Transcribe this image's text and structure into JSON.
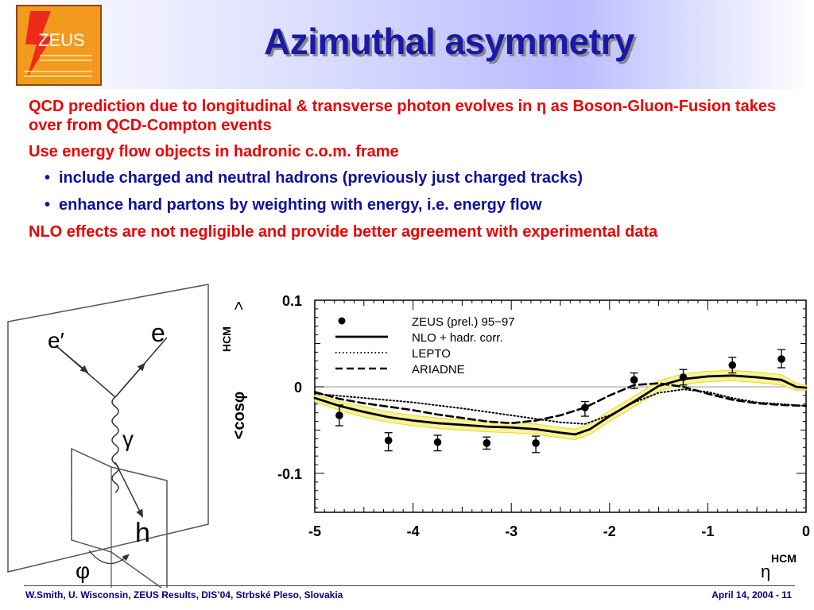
{
  "slide": {
    "title": "Azimuthal asymmetry",
    "logo_text": "ZEUS",
    "bullets": [
      {
        "text": "QCD prediction due to longitudinal & transverse photon evolves in η as Boson-Gluon-Fusion takes over from QCD-Compton events"
      },
      {
        "text": "Use energy flow objects in hadronic c.o.m. frame"
      }
    ],
    "sub_bullets": [
      {
        "text": "include charged and neutral hadrons (previously just charged tracks)"
      },
      {
        "text": "enhance hard partons by weighting with energy, i.e. energy flow"
      }
    ],
    "final_bullet": "NLO effects are not negligible and provide better agreement with experimental data",
    "footer_left": "W.Smith, U. Wisconsin, ZEUS Results, DIS’04, Strbské Pleso, Slovakia",
    "footer_right": "April 14, 2004  -  11"
  },
  "diagram": {
    "labels": {
      "e_prime": "e′",
      "e": "e",
      "gamma": "γ",
      "h": "h",
      "phi": "φ"
    }
  },
  "colors": {
    "title": "#1a1aa6",
    "red_text": "#ee0000",
    "blue_text": "#0f0fa0",
    "band_fill": "#f8f39a",
    "band_edge": "#e8d820",
    "logo_bg": "#f39a1e"
  },
  "chart_data": {
    "type": "line",
    "xlim": [
      -5,
      0
    ],
    "ylim": [
      -0.145,
      0.1
    ],
    "xticks": [
      {
        "value": -5,
        "label": "-5"
      },
      {
        "value": -4,
        "label": "-4"
      },
      {
        "value": -3,
        "label": "-3"
      },
      {
        "value": -2,
        "label": "-2"
      },
      {
        "value": -1,
        "label": "-1"
      },
      {
        "value": 0,
        "label": "0"
      }
    ],
    "yticks": [
      {
        "value": 0.1,
        "label": "0.1"
      },
      {
        "value": 0,
        "label": "0"
      },
      {
        "value": -0.1,
        "label": "-0.1"
      }
    ],
    "xlabel_main": "η",
    "xlabel_sup": "HCM",
    "ylabel_main": "<cosφ",
    "ylabel_sup": "HCM",
    "ylabel_end": ">",
    "zero_line": true,
    "legend_position": "top-left",
    "legend": [
      {
        "label": "ZEUS (prel.) 95−97",
        "style": "points"
      },
      {
        "label": "NLO + hadr. corr.",
        "style": "solid"
      },
      {
        "label": "LEPTO",
        "style": "dotted"
      },
      {
        "label": "ARIADNE",
        "style": "dashed"
      }
    ],
    "points": {
      "x": [
        -4.75,
        -4.25,
        -3.75,
        -3.25,
        -2.75,
        -2.25,
        -1.75,
        -1.25,
        -0.75,
        -0.25
      ],
      "y": [
        -0.033,
        -0.062,
        -0.064,
        -0.065,
        -0.065,
        -0.024,
        0.008,
        0.011,
        0.025,
        0.032
      ],
      "err_up": [
        0.012,
        0.009,
        0.008,
        0.007,
        0.008,
        0.007,
        0.008,
        0.009,
        0.009,
        0.011
      ],
      "err_down": [
        0.012,
        0.012,
        0.01,
        0.007,
        0.011,
        0.01,
        0.01,
        0.009,
        0.009,
        0.01
      ]
    },
    "series": [
      {
        "name": "NLO + hadr. corr.",
        "style": "solid",
        "x": [
          -5,
          -4.75,
          -4.5,
          -4.25,
          -4,
          -3.75,
          -3.5,
          -3.25,
          -3,
          -2.75,
          -2.5,
          -2.35,
          -2.2,
          -2,
          -1.75,
          -1.5,
          -1.25,
          -1,
          -0.75,
          -0.5,
          -0.25,
          -0.1,
          0
        ],
        "y": [
          -0.013,
          -0.022,
          -0.029,
          -0.035,
          -0.039,
          -0.042,
          -0.044,
          -0.046,
          -0.047,
          -0.049,
          -0.053,
          -0.055,
          -0.049,
          -0.034,
          -0.017,
          0.001,
          0.009,
          0.012,
          0.013,
          0.011,
          0.008,
          0.0,
          -0.001
        ],
        "band_half_width": [
          0.004,
          0.005,
          0.006,
          0.006,
          0.006,
          0.006,
          0.006,
          0.006,
          0.006,
          0.006,
          0.006,
          0.006,
          0.006,
          0.006,
          0.006,
          0.006,
          0.006,
          0.006,
          0.006,
          0.006,
          0.006,
          0.004,
          0.003
        ]
      },
      {
        "name": "LEPTO",
        "style": "dotted",
        "x": [
          -5,
          -4.5,
          -4,
          -3.5,
          -3,
          -2.5,
          -2.25,
          -2,
          -1.75,
          -1.5,
          -1.25,
          -1,
          -0.75,
          -0.5,
          -0.25,
          0
        ],
        "y": [
          -0.008,
          -0.013,
          -0.018,
          -0.025,
          -0.033,
          -0.041,
          -0.043,
          -0.033,
          -0.018,
          -0.007,
          -0.003,
          -0.006,
          -0.013,
          -0.018,
          -0.02,
          -0.022
        ]
      },
      {
        "name": "ARIADNE",
        "style": "dashed",
        "x": [
          -5,
          -4.75,
          -4.5,
          -4.25,
          -4,
          -3.75,
          -3.5,
          -3.25,
          -3,
          -2.75,
          -2.5,
          -2.25,
          -2,
          -1.75,
          -1.5,
          -1.25,
          -1,
          -0.75,
          -0.5,
          -0.25,
          0
        ],
        "y": [
          -0.006,
          -0.014,
          -0.019,
          -0.023,
          -0.027,
          -0.032,
          -0.036,
          -0.04,
          -0.042,
          -0.039,
          -0.033,
          -0.024,
          -0.01,
          0.002,
          0.004,
          0.0,
          -0.008,
          -0.015,
          -0.019,
          -0.021,
          -0.022
        ]
      }
    ]
  }
}
